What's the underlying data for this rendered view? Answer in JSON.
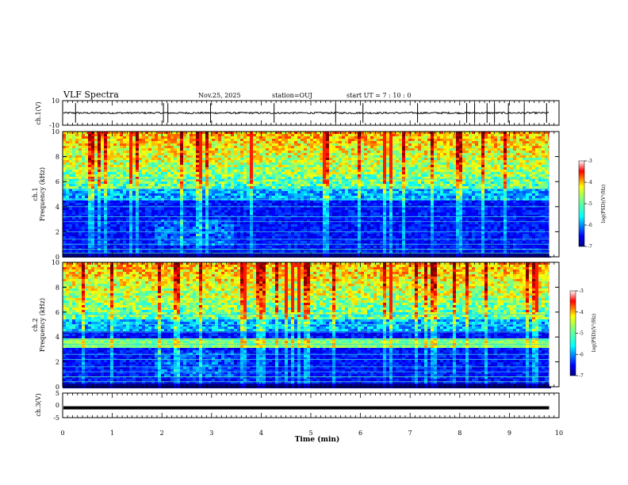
{
  "header": {
    "title": "VLF Spectra",
    "date": "Nov.25, 2025",
    "station": "station=OUJ",
    "start": "start  UT =   7 : 10 : 0"
  },
  "chart_data": [
    {
      "type": "line",
      "panel": "ch1-waveform",
      "ylabel": "ch.1(V)",
      "ylim": [
        -10,
        10
      ],
      "yticks": [
        "10",
        "-10"
      ],
      "baseline": 0,
      "spike_times_min": [
        0.26,
        2.03,
        2.12,
        2.98,
        4.26,
        5.5,
        6.05,
        7.15,
        8.14,
        8.3,
        8.55,
        8.7,
        8.98,
        9.3,
        9.75
      ]
    },
    {
      "type": "heatmap",
      "panel": "ch1-spectrogram",
      "ylabel": "ch.1",
      "ylabel2": "Frequency (kHz)",
      "ylim": [
        0,
        10
      ],
      "yticks": [
        "0",
        "2",
        "4",
        "6",
        "8",
        "10"
      ],
      "colorbar": {
        "min": -7,
        "max": -3,
        "ticks": [
          "-3",
          "-4",
          "-5",
          "-6",
          "-7"
        ],
        "label": "log(PSD)(V²/Hz)"
      }
    },
    {
      "type": "heatmap",
      "panel": "ch2-spectrogram",
      "ylabel": "ch.2",
      "ylabel2": "Frequency (kHz)",
      "ylim": [
        0,
        10
      ],
      "yticks": [
        "0",
        "2",
        "4",
        "6",
        "8",
        "10"
      ],
      "colorbar": {
        "min": -7,
        "max": -3,
        "ticks": [
          "-3",
          "-4",
          "-5",
          "-6",
          "-7"
        ],
        "label": "log(PSD)(V²/Hz)"
      }
    },
    {
      "type": "line",
      "panel": "ch3-waveform",
      "ylabel": "ch.3(V)",
      "ylim": [
        -5,
        5
      ],
      "yticks": [
        "5",
        "0",
        "-5"
      ],
      "constant_value": -1
    }
  ],
  "xaxis": {
    "label": "Time (min)",
    "xlim": [
      0,
      10
    ],
    "ticks": [
      "0",
      "1",
      "2",
      "3",
      "4",
      "5",
      "6",
      "7",
      "8",
      "9",
      "10"
    ],
    "data_end": 9.8
  },
  "colors": {
    "axis": "#000000",
    "background": "#ffffff",
    "jet": [
      "#00007f",
      "#0000ff",
      "#007fff",
      "#00ffff",
      "#7fff7f",
      "#ffff00",
      "#ff7f00",
      "#ff0000",
      "#7f0000"
    ]
  }
}
